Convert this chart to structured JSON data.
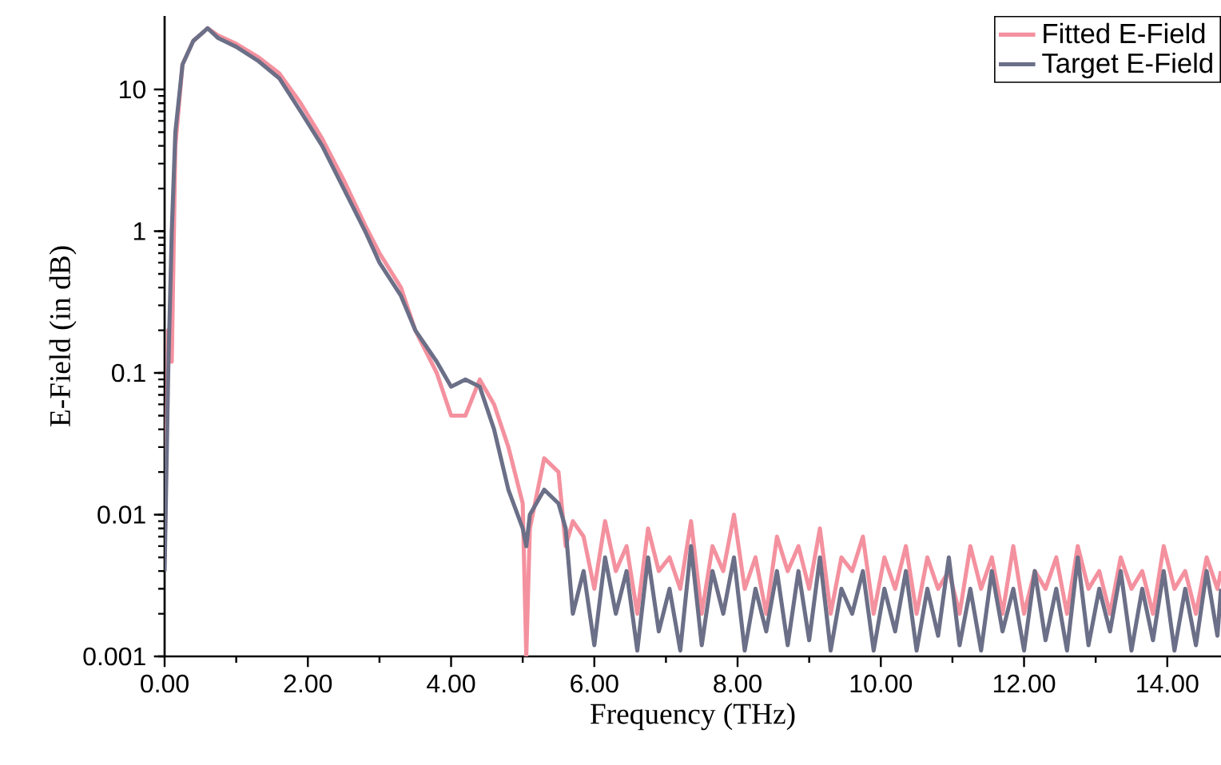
{
  "chart_data": {
    "type": "line",
    "xlabel": "Frequency (THz)",
    "ylabel": "E-Field (in dB)",
    "log": "y",
    "legend": "top right",
    "xlim": [
      0,
      14.75
    ],
    "ylim": [
      0.001,
      33
    ],
    "xticks": [
      {
        "value": 0,
        "label": "0.00"
      },
      {
        "value": 2,
        "label": "2.00"
      },
      {
        "value": 4,
        "label": "4.00"
      },
      {
        "value": 6,
        "label": "6.00"
      },
      {
        "value": 8,
        "label": "8.00"
      },
      {
        "value": 10,
        "label": "10.00"
      },
      {
        "value": 12,
        "label": "12.00"
      },
      {
        "value": 14,
        "label": "14.00"
      }
    ],
    "yticks": [
      0.001,
      0.01,
      0.1,
      1,
      10
    ],
    "x": [
      0,
      0.05,
      0.1,
      0.15,
      0.25,
      0.4,
      0.6,
      0.75,
      1.0,
      1.3,
      1.6,
      1.9,
      2.2,
      2.5,
      2.8,
      3.0,
      3.3,
      3.5,
      3.8,
      4.0,
      4.2,
      4.4,
      4.6,
      4.8,
      5.0,
      5.05,
      5.1,
      5.3,
      5.5,
      5.6,
      5.7,
      5.85,
      6,
      6.15,
      6.3,
      6.45,
      6.6,
      6.75,
      6.9,
      7.05,
      7.2,
      7.35,
      7.5,
      7.65,
      7.8,
      7.95,
      8.1,
      8.25,
      8.4,
      8.55,
      8.7,
      8.85,
      9,
      9.15,
      9.3,
      9.45,
      9.6,
      9.75,
      9.9,
      10.05,
      10.2,
      10.35,
      10.5,
      10.65,
      10.8,
      10.95,
      11.1,
      11.25,
      11.4,
      11.55,
      11.7,
      11.85,
      12,
      12.15,
      12.3,
      12.45,
      12.6,
      12.75,
      12.9,
      13.05,
      13.2,
      13.35,
      13.5,
      13.65,
      13.8,
      13.95,
      14.1,
      14.25,
      14.4,
      14.55,
      14.7,
      14.75
    ],
    "series": [
      {
        "name": "Fitted E-Field",
        "color": "#f4919f",
        "values": [
          0.005,
          0.2,
          0.12,
          4,
          15,
          22,
          27,
          24,
          21,
          17,
          13,
          8,
          4.5,
          2.3,
          1.1,
          0.7,
          0.4,
          0.2,
          0.1,
          0.05,
          0.05,
          0.09,
          0.06,
          0.03,
          0.012,
          0.001,
          0.008,
          0.025,
          0.02,
          0.006,
          0.009,
          0.007,
          0.003,
          0.009,
          0.004,
          0.006,
          0.002,
          0.008,
          0.004,
          0.005,
          0.003,
          0.009,
          0.002,
          0.006,
          0.004,
          0.01,
          0.003,
          0.005,
          0.002,
          0.007,
          0.004,
          0.006,
          0.003,
          0.008,
          0.002,
          0.005,
          0.004,
          0.007,
          0.002,
          0.005,
          0.003,
          0.006,
          0.002,
          0.005,
          0.003,
          0.004,
          0.002,
          0.006,
          0.003,
          0.005,
          0.002,
          0.006,
          0.002,
          0.004,
          0.003,
          0.005,
          0.002,
          0.006,
          0.003,
          0.004,
          0.002,
          0.005,
          0.003,
          0.004,
          0.002,
          0.006,
          0.003,
          0.004,
          0.002,
          0.005,
          0.003,
          0.004
        ]
      },
      {
        "name": "Target E-Field",
        "color": "#6b6f87",
        "values": [
          0.004,
          0.1,
          1,
          5,
          15,
          22,
          27,
          23,
          20,
          16,
          12,
          7,
          4,
          2,
          1.0,
          0.6,
          0.35,
          0.2,
          0.12,
          0.08,
          0.09,
          0.08,
          0.04,
          0.015,
          0.008,
          0.006,
          0.01,
          0.015,
          0.012,
          0.008,
          0.002,
          0.004,
          0.0012,
          0.005,
          0.002,
          0.004,
          0.0011,
          0.005,
          0.0015,
          0.003,
          0.0011,
          0.006,
          0.0012,
          0.004,
          0.002,
          0.005,
          0.0011,
          0.003,
          0.0015,
          0.004,
          0.0012,
          0.004,
          0.0013,
          0.005,
          0.0011,
          0.003,
          0.002,
          0.004,
          0.0011,
          0.003,
          0.0015,
          0.004,
          0.0011,
          0.003,
          0.0014,
          0.005,
          0.0012,
          0.003,
          0.0011,
          0.004,
          0.0015,
          0.003,
          0.0011,
          0.004,
          0.0013,
          0.003,
          0.0011,
          0.005,
          0.0012,
          0.003,
          0.0015,
          0.004,
          0.0011,
          0.003,
          0.0013,
          0.004,
          0.0011,
          0.003,
          0.0012,
          0.004,
          0.0014,
          0.003
        ]
      }
    ]
  }
}
